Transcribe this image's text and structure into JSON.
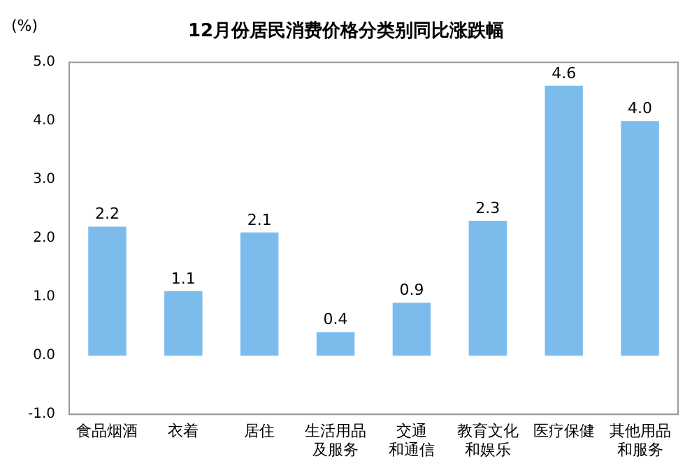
{
  "chart_data": {
    "type": "bar",
    "title": "12月份居民消费价格分类别同比涨跌幅",
    "ylabel": "(%)",
    "categories": [
      "食品烟酒",
      "衣着",
      "居住",
      "生活用品及服务",
      "交通和通信",
      "教育文化和娱乐",
      "医疗保健",
      "其他用品和服务"
    ],
    "values": [
      2.2,
      1.1,
      2.1,
      0.4,
      0.9,
      2.3,
      4.6,
      4.0
    ],
    "value_labels": [
      "2.2",
      "1.1",
      "2.1",
      "0.4",
      "0.9",
      "2.3",
      "4.6",
      "4.0"
    ],
    "color": "#7cbcec",
    "ylim": [
      -1,
      5
    ],
    "yticks": [
      {
        "value": -1,
        "label": "-1.0"
      },
      {
        "value": 0,
        "label": "0.0"
      },
      {
        "value": 1,
        "label": "1.0"
      },
      {
        "value": 2,
        "label": "2.0"
      },
      {
        "value": 3,
        "label": "3.0"
      },
      {
        "value": 4,
        "label": "4.0"
      },
      {
        "value": 5,
        "label": "5.0"
      }
    ],
    "grid": false
  }
}
